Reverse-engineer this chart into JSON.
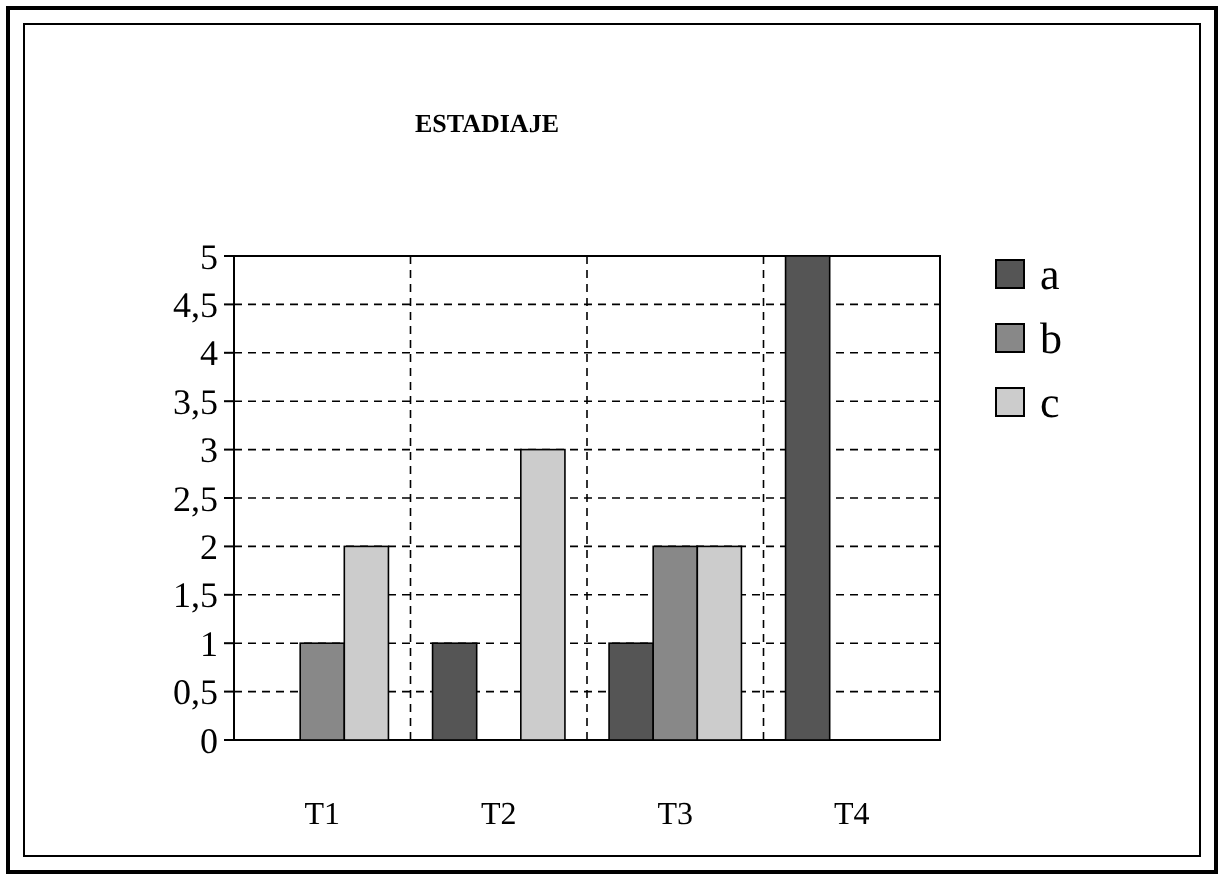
{
  "chart_data": {
    "type": "bar",
    "title": "ESTADIAJE",
    "categories": [
      "T1",
      "T2",
      "T3",
      "T4"
    ],
    "series": [
      {
        "name": "a",
        "color": "#555555",
        "values": [
          0,
          1,
          1,
          5
        ]
      },
      {
        "name": "b",
        "color": "#888888",
        "values": [
          1,
          0,
          2,
          0
        ]
      },
      {
        "name": "c",
        "color": "#cccccc",
        "values": [
          2,
          3,
          2,
          0
        ]
      }
    ],
    "ylim": [
      0,
      5
    ],
    "yticks": [
      0,
      {
        "value": 0.5,
        "label": "0,5"
      },
      1,
      {
        "value": 1.5,
        "label": "1,5"
      },
      2,
      {
        "value": 2.5,
        "label": "2,5"
      },
      3,
      {
        "value": 3.5,
        "label": "3,5"
      },
      4,
      {
        "value": 4.5,
        "label": "4,5"
      },
      5
    ],
    "grid": true,
    "legend": "right"
  }
}
